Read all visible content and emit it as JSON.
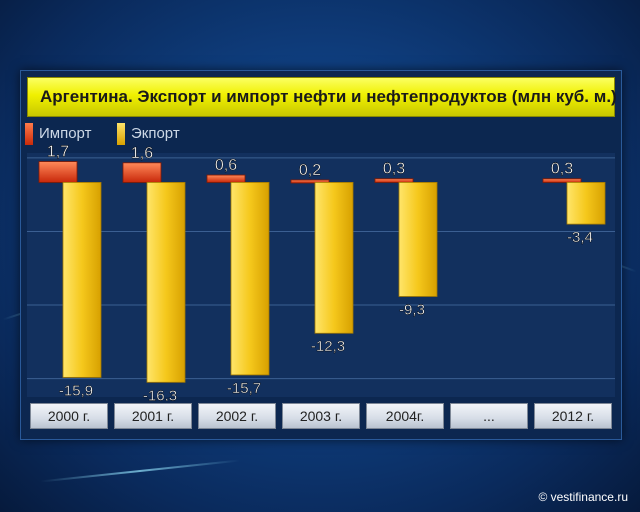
{
  "chart_data": {
    "type": "bar",
    "title": "Аргентина. Экспорт и импорт нефти и нефтепродуктов (млн куб. м.)",
    "categories": [
      "2000 г.",
      "2001 г.",
      "2002 г.",
      "2003 г.",
      "2004г.",
      "...",
      "2012 г."
    ],
    "series": [
      {
        "name": "Импорт",
        "values": [
          1.7,
          1.6,
          0.6,
          0.2,
          0.3,
          null,
          0.3
        ],
        "labels": [
          "1,7",
          "1,6",
          "0,6",
          "0,2",
          "0,3",
          "",
          "0,3"
        ],
        "color": "#e8461c"
      },
      {
        "name": "Экпорт",
        "values": [
          -15.9,
          -16.3,
          -15.7,
          -12.3,
          -9.3,
          null,
          -3.4
        ],
        "labels": [
          "-15,9",
          "-16,3",
          "-15,7",
          "-12,3",
          "-9,3",
          "",
          "-3,4"
        ],
        "color": "#f3c51c"
      }
    ],
    "ylim": [
      -17.5,
      2.4
    ],
    "grid": true,
    "legend": "top-left"
  },
  "credit": "© vestifinance.ru"
}
